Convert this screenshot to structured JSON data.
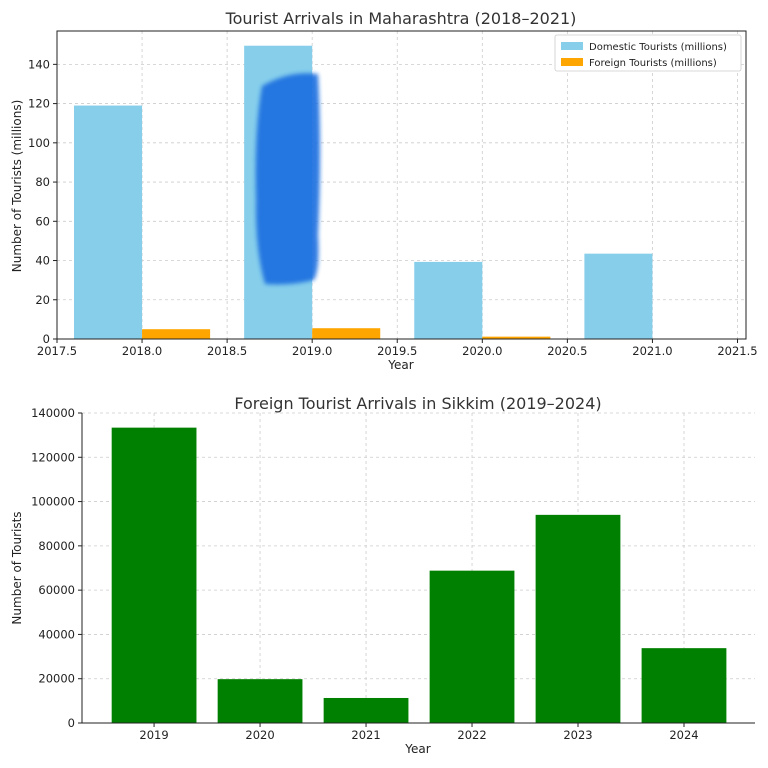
{
  "chart_data": [
    {
      "type": "bar",
      "title": "Tourist Arrivals in Maharashtra (2018–2021)",
      "xlabel": "Year",
      "ylabel": "Number of Tourists (millions)",
      "x": [
        2018,
        2019,
        2020,
        2021
      ],
      "xlim": [
        2017.5,
        2021.55
      ],
      "ylim": [
        0,
        157
      ],
      "xticks": [
        "2017.5",
        "2018.0",
        "2018.5",
        "2019.0",
        "2019.5",
        "2020.0",
        "2020.5",
        "2021.0",
        "2021.5"
      ],
      "yticks": [
        "0",
        "20",
        "40",
        "60",
        "80",
        "100",
        "120",
        "140"
      ],
      "series": [
        {
          "name": "Domestic Tourists (millions)",
          "color": "#87ceeb",
          "values": [
            119,
            149.5,
            39.3,
            43.5
          ]
        },
        {
          "name": "Foreign Tourists (millions)",
          "color": "#ffa500",
          "values": [
            5.0,
            5.5,
            1.2,
            0.2
          ]
        }
      ],
      "grid": true,
      "legend": "top-right",
      "annotation_color": "#1a6fe0"
    },
    {
      "type": "bar",
      "title": "Foreign Tourist Arrivals in Sikkim (2019–2024)",
      "xlabel": "Year",
      "ylabel": "Number of Tourists",
      "categories": [
        "2019",
        "2020",
        "2021",
        "2022",
        "2023",
        "2024"
      ],
      "values": [
        133388,
        19800,
        11300,
        68800,
        94000,
        33800
      ],
      "ylim": [
        0,
        140000
      ],
      "yticks": [
        "0",
        "20000",
        "40000",
        "60000",
        "80000",
        "100000",
        "120000",
        "140000"
      ],
      "color": "#008000",
      "grid": true
    }
  ]
}
